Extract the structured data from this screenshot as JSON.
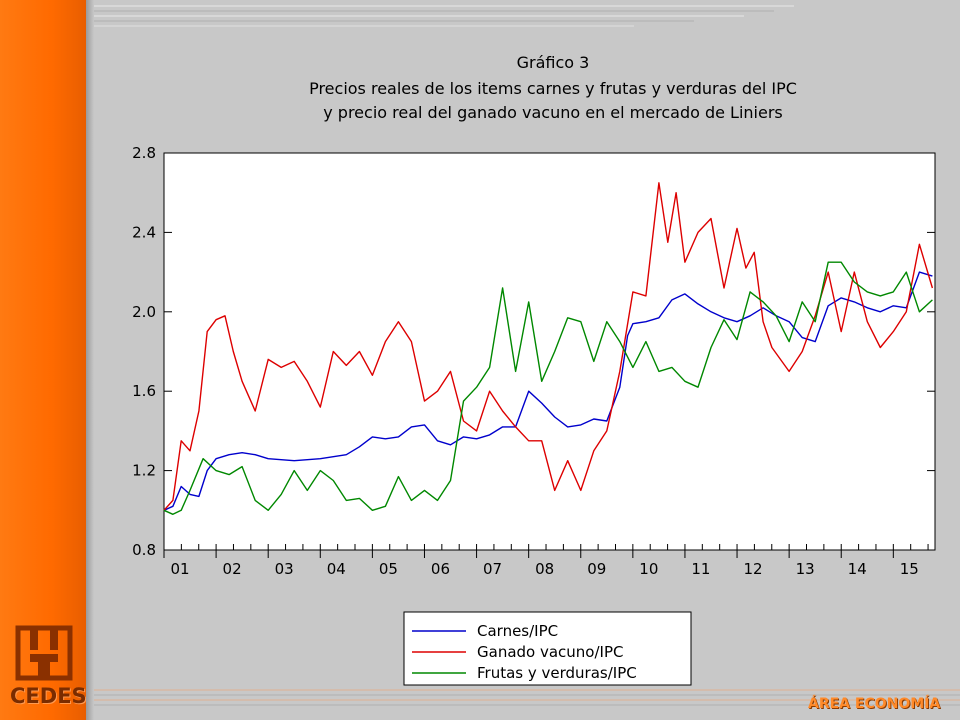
{
  "branding": {
    "logo_text": "CEDES",
    "area_label": "ÁREA ECONOMÍA",
    "sidebar_color": "#ff6a00"
  },
  "chart_data": {
    "type": "line",
    "title": [
      "Gráfico 3",
      "Precios reales de los items carnes y frutas y verduras del IPC",
      "y precio real del ganado vacuno en el mercado de Liniers"
    ],
    "xlabel": "",
    "ylabel": "",
    "xlim": [
      2001,
      2015.8
    ],
    "ylim": [
      0.8,
      2.8
    ],
    "x_tick_labels": [
      "01",
      "02",
      "03",
      "04",
      "05",
      "06",
      "07",
      "08",
      "09",
      "10",
      "11",
      "12",
      "13",
      "14",
      "15"
    ],
    "x_tick_values": [
      2001,
      2002,
      2003,
      2004,
      2005,
      2006,
      2007,
      2008,
      2009,
      2010,
      2011,
      2012,
      2013,
      2014,
      2015
    ],
    "y_ticks": [
      0.8,
      1.2,
      1.6,
      2.0,
      2.4,
      2.8
    ],
    "y_tick_labels": [
      "0.8",
      "1.2",
      "1.6",
      "2.0",
      "2.4",
      "2.8"
    ],
    "grid": false,
    "legend_position": "bottom-center",
    "series": [
      {
        "name": "Carnes/IPC",
        "color": "#0000cc",
        "points": [
          [
            2001.0,
            1.0
          ],
          [
            2001.17,
            1.02
          ],
          [
            2001.33,
            1.12
          ],
          [
            2001.5,
            1.08
          ],
          [
            2001.67,
            1.07
          ],
          [
            2001.83,
            1.2
          ],
          [
            2002.0,
            1.26
          ],
          [
            2002.25,
            1.28
          ],
          [
            2002.5,
            1.29
          ],
          [
            2002.75,
            1.28
          ],
          [
            2003.0,
            1.26
          ],
          [
            2003.5,
            1.25
          ],
          [
            2004.0,
            1.26
          ],
          [
            2004.5,
            1.28
          ],
          [
            2004.75,
            1.32
          ],
          [
            2005.0,
            1.37
          ],
          [
            2005.25,
            1.36
          ],
          [
            2005.5,
            1.37
          ],
          [
            2005.75,
            1.42
          ],
          [
            2006.0,
            1.43
          ],
          [
            2006.25,
            1.35
          ],
          [
            2006.5,
            1.33
          ],
          [
            2006.75,
            1.37
          ],
          [
            2007.0,
            1.36
          ],
          [
            2007.25,
            1.38
          ],
          [
            2007.5,
            1.42
          ],
          [
            2007.75,
            1.42
          ],
          [
            2008.0,
            1.6
          ],
          [
            2008.25,
            1.54
          ],
          [
            2008.5,
            1.47
          ],
          [
            2008.75,
            1.42
          ],
          [
            2009.0,
            1.43
          ],
          [
            2009.25,
            1.46
          ],
          [
            2009.5,
            1.45
          ],
          [
            2009.75,
            1.62
          ],
          [
            2009.9,
            1.88
          ],
          [
            2010.0,
            1.94
          ],
          [
            2010.25,
            1.95
          ],
          [
            2010.5,
            1.97
          ],
          [
            2010.75,
            2.06
          ],
          [
            2011.0,
            2.09
          ],
          [
            2011.25,
            2.04
          ],
          [
            2011.5,
            2.0
          ],
          [
            2011.75,
            1.97
          ],
          [
            2012.0,
            1.95
          ],
          [
            2012.25,
            1.98
          ],
          [
            2012.5,
            2.02
          ],
          [
            2012.75,
            1.98
          ],
          [
            2013.0,
            1.95
          ],
          [
            2013.25,
            1.87
          ],
          [
            2013.5,
            1.85
          ],
          [
            2013.75,
            2.03
          ],
          [
            2014.0,
            2.07
          ],
          [
            2014.25,
            2.05
          ],
          [
            2014.5,
            2.02
          ],
          [
            2014.75,
            2.0
          ],
          [
            2015.0,
            2.03
          ],
          [
            2015.25,
            2.02
          ],
          [
            2015.5,
            2.2
          ],
          [
            2015.75,
            2.18
          ]
        ]
      },
      {
        "name": "Ganado vacuno/IPC",
        "color": "#dd0000",
        "points": [
          [
            2001.0,
            1.0
          ],
          [
            2001.17,
            1.05
          ],
          [
            2001.33,
            1.35
          ],
          [
            2001.5,
            1.3
          ],
          [
            2001.67,
            1.5
          ],
          [
            2001.83,
            1.9
          ],
          [
            2002.0,
            1.96
          ],
          [
            2002.17,
            1.98
          ],
          [
            2002.33,
            1.8
          ],
          [
            2002.5,
            1.65
          ],
          [
            2002.75,
            1.5
          ],
          [
            2003.0,
            1.76
          ],
          [
            2003.25,
            1.72
          ],
          [
            2003.5,
            1.75
          ],
          [
            2003.75,
            1.65
          ],
          [
            2004.0,
            1.52
          ],
          [
            2004.25,
            1.8
          ],
          [
            2004.5,
            1.73
          ],
          [
            2004.75,
            1.8
          ],
          [
            2005.0,
            1.68
          ],
          [
            2005.25,
            1.85
          ],
          [
            2005.5,
            1.95
          ],
          [
            2005.75,
            1.85
          ],
          [
            2006.0,
            1.55
          ],
          [
            2006.25,
            1.6
          ],
          [
            2006.5,
            1.7
          ],
          [
            2006.75,
            1.45
          ],
          [
            2007.0,
            1.4
          ],
          [
            2007.25,
            1.6
          ],
          [
            2007.5,
            1.5
          ],
          [
            2007.75,
            1.42
          ],
          [
            2008.0,
            1.35
          ],
          [
            2008.25,
            1.35
          ],
          [
            2008.5,
            1.1
          ],
          [
            2008.75,
            1.25
          ],
          [
            2009.0,
            1.1
          ],
          [
            2009.25,
            1.3
          ],
          [
            2009.5,
            1.4
          ],
          [
            2009.75,
            1.7
          ],
          [
            2010.0,
            2.1
          ],
          [
            2010.25,
            2.08
          ],
          [
            2010.5,
            2.65
          ],
          [
            2010.67,
            2.35
          ],
          [
            2010.83,
            2.6
          ],
          [
            2011.0,
            2.25
          ],
          [
            2011.25,
            2.4
          ],
          [
            2011.5,
            2.47
          ],
          [
            2011.75,
            2.12
          ],
          [
            2012.0,
            2.42
          ],
          [
            2012.17,
            2.22
          ],
          [
            2012.33,
            2.3
          ],
          [
            2012.5,
            1.95
          ],
          [
            2012.67,
            1.82
          ],
          [
            2013.0,
            1.7
          ],
          [
            2013.25,
            1.8
          ],
          [
            2013.5,
            1.98
          ],
          [
            2013.75,
            2.2
          ],
          [
            2014.0,
            1.9
          ],
          [
            2014.25,
            2.2
          ],
          [
            2014.5,
            1.95
          ],
          [
            2014.75,
            1.82
          ],
          [
            2015.0,
            1.9
          ],
          [
            2015.25,
            2.0
          ],
          [
            2015.5,
            2.34
          ],
          [
            2015.75,
            2.12
          ]
        ]
      },
      {
        "name": "Frutas y verduras/IPC",
        "color": "#008800",
        "points": [
          [
            2001.0,
            1.0
          ],
          [
            2001.17,
            0.98
          ],
          [
            2001.33,
            1.0
          ],
          [
            2001.5,
            1.1
          ],
          [
            2001.75,
            1.26
          ],
          [
            2002.0,
            1.2
          ],
          [
            2002.25,
            1.18
          ],
          [
            2002.5,
            1.22
          ],
          [
            2002.75,
            1.05
          ],
          [
            2003.0,
            1.0
          ],
          [
            2003.25,
            1.08
          ],
          [
            2003.5,
            1.2
          ],
          [
            2003.75,
            1.1
          ],
          [
            2004.0,
            1.2
          ],
          [
            2004.25,
            1.15
          ],
          [
            2004.5,
            1.05
          ],
          [
            2004.75,
            1.06
          ],
          [
            2005.0,
            1.0
          ],
          [
            2005.25,
            1.02
          ],
          [
            2005.5,
            1.17
          ],
          [
            2005.75,
            1.05
          ],
          [
            2006.0,
            1.1
          ],
          [
            2006.25,
            1.05
          ],
          [
            2006.5,
            1.15
          ],
          [
            2006.75,
            1.55
          ],
          [
            2007.0,
            1.62
          ],
          [
            2007.25,
            1.72
          ],
          [
            2007.5,
            2.12
          ],
          [
            2007.75,
            1.7
          ],
          [
            2008.0,
            2.05
          ],
          [
            2008.25,
            1.65
          ],
          [
            2008.5,
            1.8
          ],
          [
            2008.75,
            1.97
          ],
          [
            2009.0,
            1.95
          ],
          [
            2009.25,
            1.75
          ],
          [
            2009.5,
            1.95
          ],
          [
            2009.75,
            1.85
          ],
          [
            2010.0,
            1.72
          ],
          [
            2010.25,
            1.85
          ],
          [
            2010.5,
            1.7
          ],
          [
            2010.75,
            1.72
          ],
          [
            2011.0,
            1.65
          ],
          [
            2011.25,
            1.62
          ],
          [
            2011.5,
            1.82
          ],
          [
            2011.75,
            1.96
          ],
          [
            2012.0,
            1.86
          ],
          [
            2012.25,
            2.1
          ],
          [
            2012.5,
            2.05
          ],
          [
            2012.75,
            1.98
          ],
          [
            2013.0,
            1.85
          ],
          [
            2013.25,
            2.05
          ],
          [
            2013.5,
            1.95
          ],
          [
            2013.75,
            2.25
          ],
          [
            2014.0,
            2.25
          ],
          [
            2014.25,
            2.15
          ],
          [
            2014.5,
            2.1
          ],
          [
            2014.75,
            2.08
          ],
          [
            2015.0,
            2.1
          ],
          [
            2015.25,
            2.2
          ],
          [
            2015.5,
            2.0
          ],
          [
            2015.75,
            2.06
          ]
        ]
      }
    ]
  }
}
